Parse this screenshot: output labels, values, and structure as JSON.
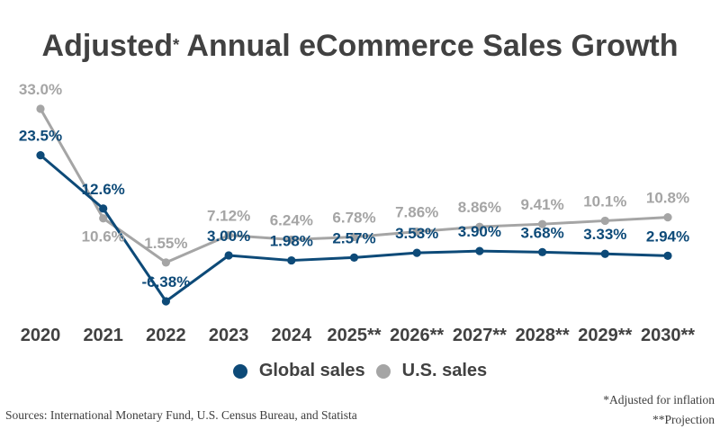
{
  "title": {
    "prefix": "Adjusted",
    "asterisk": "*",
    "suffix": " Annual eCommerce Sales Growth"
  },
  "chart_data": {
    "type": "line",
    "title": "Adjusted* Annual eCommerce Sales Growth",
    "categories": [
      "2020",
      "2021",
      "2022",
      "2023",
      "2024",
      "2025**",
      "2026**",
      "2027**",
      "2028**",
      "2029**",
      "2030**"
    ],
    "series": [
      {
        "name": "Global sales",
        "color": "#0d4a78",
        "values": [
          23.5,
          12.6,
          -6.38,
          3.0,
          1.98,
          2.57,
          3.53,
          3.9,
          3.68,
          3.33,
          2.94
        ],
        "labels": [
          "23.5%",
          "12.6%",
          "-6.38%",
          "3.00%",
          "1.98%",
          "2.57%",
          "3.53%",
          "3.90%",
          "3.68%",
          "3.33%",
          "2.94%"
        ]
      },
      {
        "name": "U.S. sales",
        "color": "#a5a5a5",
        "values": [
          33.0,
          10.6,
          1.55,
          7.12,
          6.24,
          6.78,
          7.86,
          8.86,
          9.41,
          10.1,
          10.8
        ],
        "labels": [
          "33.0%",
          "10.6%",
          "1.55%",
          "7.12%",
          "6.24%",
          "6.78%",
          "7.86%",
          "8.86%",
          "9.41%",
          "10.1%",
          "10.8%"
        ]
      }
    ],
    "xlabel": "",
    "ylabel": "",
    "ylim": [
      -10,
      35
    ],
    "grid": false,
    "data_labels": true,
    "legend_position": "bottom"
  },
  "legend": {
    "items": [
      {
        "label": "Global sales",
        "color": "#0d4a78"
      },
      {
        "label": "U.S. sales",
        "color": "#a5a5a5"
      }
    ]
  },
  "footer": {
    "sources": "Sources: International Monetary Fund, U.S. Census Bureau, and Statista",
    "footnote_adjusted": "*Adjusted for inflation",
    "footnote_projection": "**Projection"
  },
  "colors": {
    "global_blue": "#0d4a78",
    "us_gray": "#a5a5a5",
    "heading_text": "#414141",
    "footer_text": "#3d3d3d",
    "background": "#ffffff"
  }
}
